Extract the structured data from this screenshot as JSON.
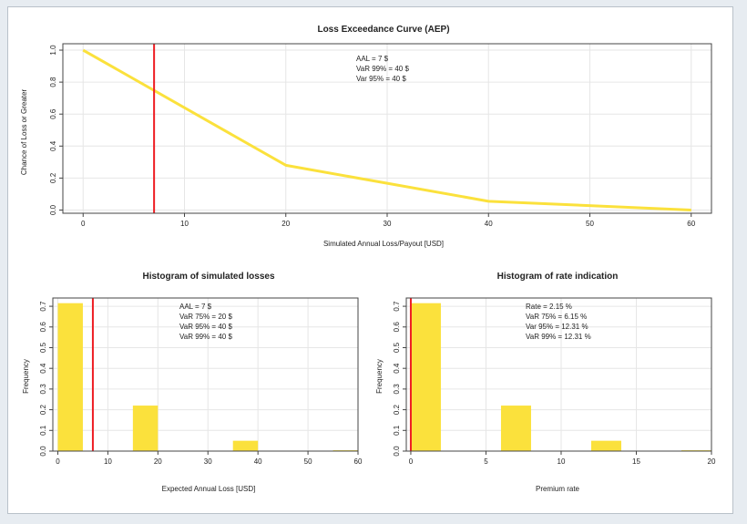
{
  "colors": {
    "series": "#fbe13c",
    "marker": "#ee1d23",
    "axis": "#444444",
    "grid": "#e6e6e6"
  },
  "chart_data": [
    {
      "type": "line",
      "title": "Loss Exceedance Curve (AEP)",
      "xlabel": "Simulated Annual Loss/Payout [USD]",
      "ylabel": "Chance of Loss or Greater",
      "xlim": [
        -2,
        62
      ],
      "ylim": [
        -0.02,
        1.04
      ],
      "xticks": [
        0,
        10,
        20,
        30,
        40,
        50,
        60
      ],
      "yticks": [
        0.0,
        0.2,
        0.4,
        0.6,
        0.8,
        1.0
      ],
      "xtick_labels": [
        "0",
        "10",
        "20",
        "30",
        "40",
        "50",
        "60"
      ],
      "ytick_labels": [
        "0.0",
        "0.2",
        "0.4",
        "0.6",
        "0.8",
        "1.0"
      ],
      "x": [
        0,
        20,
        40,
        60
      ],
      "y": [
        1.0,
        0.28,
        0.055,
        0.0
      ],
      "vline": 7,
      "grid": true,
      "annotations": [
        "AAL =  7 $",
        "VaR 99% = 40 $",
        "Var 95% =  40 $"
      ]
    },
    {
      "type": "bar",
      "title": "Histogram of simulated losses",
      "xlabel": "Expected Annual Loss [USD]",
      "ylabel": "Frequency",
      "xlim": [
        -1,
        60
      ],
      "ylim": [
        0,
        0.74
      ],
      "xticks": [
        0,
        10,
        20,
        30,
        40,
        50,
        60
      ],
      "yticks": [
        0.0,
        0.1,
        0.2,
        0.3,
        0.4,
        0.5,
        0.6,
        0.7
      ],
      "xtick_labels": [
        "0",
        "10",
        "20",
        "30",
        "40",
        "50",
        "60"
      ],
      "ytick_labels": [
        "0.0",
        "0.1",
        "0.2",
        "0.3",
        "0.4",
        "0.5",
        "0.6",
        "0.7"
      ],
      "bins": [
        {
          "x0": 0,
          "x1": 5,
          "value": 0.715
        },
        {
          "x0": 15,
          "x1": 20,
          "value": 0.22
        },
        {
          "x0": 35,
          "x1": 40,
          "value": 0.05
        },
        {
          "x0": 55,
          "x1": 60,
          "value": 0.004
        }
      ],
      "vline": 7,
      "grid": true,
      "annotations": [
        "AAL =  7 $",
        "VaR 75% = 20 $",
        "VaR 95% =  40 $",
        "VaR 99% = 40 $"
      ]
    },
    {
      "type": "bar",
      "title": "Histogram of rate indication",
      "xlabel": "Premium rate",
      "ylabel": "Frequency",
      "xlim": [
        -0.3,
        20
      ],
      "ylim": [
        0,
        0.74
      ],
      "xticks": [
        0,
        5,
        10,
        15,
        20
      ],
      "yticks": [
        0.0,
        0.1,
        0.2,
        0.3,
        0.4,
        0.5,
        0.6,
        0.7
      ],
      "xtick_labels": [
        "0",
        "5",
        "10",
        "15",
        "20"
      ],
      "ytick_labels": [
        "0.0",
        "0.1",
        "0.2",
        "0.3",
        "0.4",
        "0.5",
        "0.6",
        "0.7"
      ],
      "bins": [
        {
          "x0": 0,
          "x1": 2,
          "value": 0.715
        },
        {
          "x0": 6,
          "x1": 8,
          "value": 0.22
        },
        {
          "x0": 12,
          "x1": 14,
          "value": 0.05
        },
        {
          "x0": 18,
          "x1": 20,
          "value": 0.004
        }
      ],
      "vline": 0,
      "grid": true,
      "annotations": [
        "Rate = 2.15 %",
        "VaR 75% = 6.15 %",
        "Var 95% =  12.31 %",
        "VaR 99% = 12.31 %"
      ]
    }
  ]
}
